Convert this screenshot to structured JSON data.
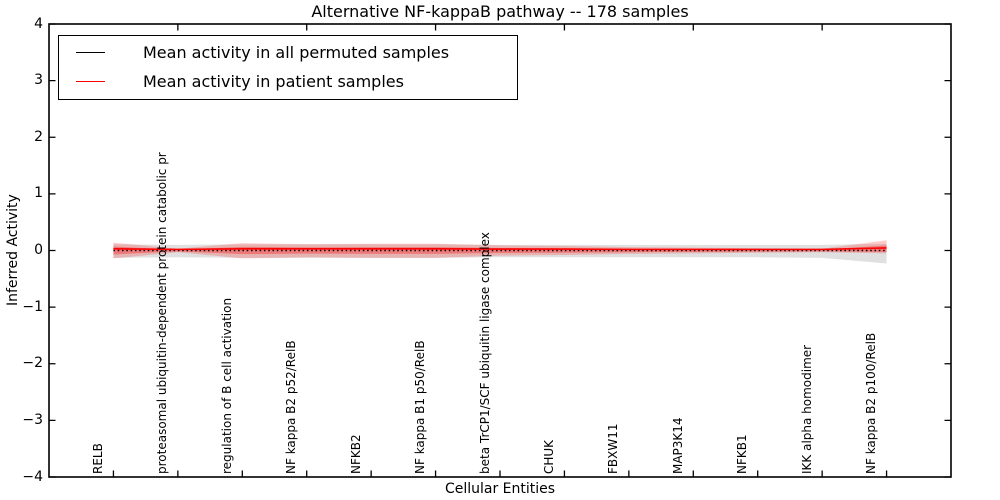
{
  "title": "Alternative NF-kappaB pathway -- 178 samples",
  "axes": {
    "ylabel": "Inferred Activity",
    "xlabel": "Cellular Entities",
    "ytick_labels": [
      "4",
      "3",
      "2",
      "1",
      "0",
      "−1",
      "−2",
      "−3",
      "−4"
    ]
  },
  "legend": {
    "entries": [
      {
        "label": "Mean activity in all permuted samples",
        "color": "#000000"
      },
      {
        "label": "Mean activity in patient samples",
        "color": "#ff0000"
      }
    ]
  },
  "chart_data": {
    "type": "line",
    "title": "Alternative NF-kappaB pathway -- 178 samples",
    "xlabel": "Cellular Entities",
    "ylabel": "Inferred Activity",
    "ylim": [
      -4,
      4
    ],
    "yticks": [
      4,
      3,
      2,
      1,
      0,
      -1,
      -2,
      -3,
      -4
    ],
    "grid": false,
    "legend_position": "upper left",
    "categories": [
      "RELB",
      "proteasomal ubiquitin-dependent protein catabolic pr",
      "regulation of B cell activation",
      "NF kappa B2 p52/RelB",
      "NFKB2",
      "NF kappa B1 p50/RelB",
      "beta TrCP1/SCF ubiquitin ligase complex",
      "CHUK",
      "FBXW11",
      "MAP3K14",
      "NFKB1",
      "IKK alpha homodimer",
      "NF kappa B2 p100/RelB"
    ],
    "series": [
      {
        "name": "Mean activity in all permuted samples",
        "color": "#000000",
        "line_style": "dotted",
        "values": [
          0,
          0,
          0,
          0,
          0,
          0,
          0,
          0,
          0,
          0,
          0,
          0,
          0
        ],
        "band_upper": [
          0.11,
          0.1,
          0.11,
          0.11,
          0.11,
          0.11,
          0.1,
          0.1,
          0.1,
          0.1,
          0.1,
          0.1,
          0.12
        ],
        "band_lower": [
          -0.13,
          -0.12,
          -0.13,
          -0.13,
          -0.13,
          -0.13,
          -0.12,
          -0.12,
          -0.12,
          -0.12,
          -0.12,
          -0.13,
          -0.23
        ],
        "band_color": "rgba(0,0,0,0.12)"
      },
      {
        "name": "Mean activity in patient samples",
        "color": "#ff0000",
        "line_style": "solid",
        "values": [
          0.03,
          0.02,
          0.03,
          0.03,
          0.03,
          0.03,
          0.025,
          0.025,
          0.02,
          0.02,
          0.02,
          0.02,
          0.045
        ],
        "band_outer_upper": [
          0.14,
          0.03,
          0.13,
          0.11,
          0.12,
          0.12,
          0.09,
          0.08,
          0.06,
          0.05,
          0.04,
          0.03,
          0.18
        ],
        "band_outer_lower": [
          -0.14,
          -0.03,
          -0.14,
          -0.12,
          -0.13,
          -0.13,
          -0.09,
          -0.08,
          -0.06,
          -0.05,
          -0.04,
          -0.03,
          -0.05
        ],
        "band_inner_upper": [
          0.07,
          0.015,
          0.065,
          0.055,
          0.06,
          0.06,
          0.045,
          0.04,
          0.03,
          0.025,
          0.02,
          0.015,
          0.09
        ],
        "band_inner_lower": [
          -0.07,
          -0.015,
          -0.065,
          -0.055,
          -0.06,
          -0.06,
          -0.045,
          -0.04,
          -0.03,
          -0.025,
          -0.02,
          -0.015,
          -0.025
        ],
        "band_outer_color": "rgba(255,0,0,0.20)",
        "band_inner_color": "rgba(255,0,0,0.32)"
      }
    ],
    "top_tick_indices": [
      1,
      3,
      5,
      7,
      9,
      11
    ]
  }
}
